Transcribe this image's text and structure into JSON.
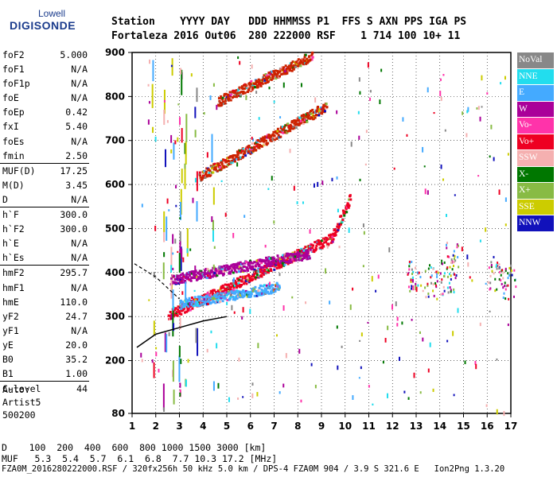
{
  "logo": {
    "line1": "Lowell",
    "line2": "DIGISONDE"
  },
  "header": {
    "row1": "Station    YYYY DAY   DDD HHMMSS P1  FFS S AXN PPS IGA PS",
    "row2": "Fortaleza 2016 Out06  280 222000 RSF    1 714 100 10+ 11"
  },
  "params": [
    {
      "k": "foF2",
      "v": "5.000"
    },
    {
      "k": "foF1",
      "v": "N/A"
    },
    {
      "k": "foF1p",
      "v": "N/A"
    },
    {
      "k": "foE",
      "v": "N/A"
    },
    {
      "k": "foEp",
      "v": "0.42"
    },
    {
      "k": "fxI",
      "v": "5.40"
    },
    {
      "k": "foEs",
      "v": "N/A"
    },
    {
      "k": "fmin",
      "v": "2.50"
    },
    {
      "k": "MUF(D)",
      "v": "17.25",
      "sep": true
    },
    {
      "k": "M(D)",
      "v": "3.45"
    },
    {
      "k": "D",
      "v": "N/A"
    },
    {
      "k": "h`F",
      "v": "300.0",
      "sep": true
    },
    {
      "k": "h`F2",
      "v": "300.0"
    },
    {
      "k": "h`E",
      "v": "N/A"
    },
    {
      "k": "h`Es",
      "v": "N/A"
    },
    {
      "k": "hmF2",
      "v": "295.7",
      "sep": true
    },
    {
      "k": "hmF1",
      "v": "N/A"
    },
    {
      "k": "hmE",
      "v": "110.0"
    },
    {
      "k": "yF2",
      "v": "24.7"
    },
    {
      "k": "yF1",
      "v": "N/A"
    },
    {
      "k": "yE",
      "v": "20.0"
    },
    {
      "k": "B0",
      "v": "35.2"
    },
    {
      "k": "B1",
      "v": "1.00"
    },
    {
      "k": "C-level",
      "v": "44",
      "sep": true
    }
  ],
  "auto": {
    "line1": "Auto:",
    "line2": "Artist5",
    "line3": "500200"
  },
  "legend": [
    {
      "label": "NoVal",
      "color": "#888888"
    },
    {
      "label": "NNE",
      "color": "#22ddee"
    },
    {
      "label": "E",
      "color": "#44aaff"
    },
    {
      "label": "W",
      "color": "#aa0099"
    },
    {
      "label": "Vo-",
      "color": "#ff33aa"
    },
    {
      "label": "Vo+",
      "color": "#ee0022"
    },
    {
      "label": "SSW",
      "color": "#f5b0b0"
    },
    {
      "label": "X-",
      "color": "#007700"
    },
    {
      "label": "X+",
      "color": "#88bb44"
    },
    {
      "label": "SSE",
      "color": "#cccc00"
    },
    {
      "label": "NNW",
      "color": "#1111bb"
    }
  ],
  "chart_data": {
    "type": "scatter",
    "title": "",
    "xlim": [
      1,
      17
    ],
    "ylim": [
      80,
      900
    ],
    "x_ticks": [
      "1",
      "2",
      "3",
      "4",
      "5",
      "6",
      "7",
      "8",
      "9",
      "10",
      "11",
      "12",
      "13",
      "14",
      "15",
      "16",
      "17"
    ],
    "y_ticks": [
      "80",
      "200",
      "300",
      "400",
      "500",
      "600",
      "700",
      "800",
      "900"
    ],
    "y_tick_values": [
      80,
      200,
      300,
      400,
      500,
      600,
      700,
      800,
      900
    ],
    "traces": [
      {
        "name": "O-trace F",
        "color": "#ee0022",
        "x_start": 2.5,
        "x_end": 10.2,
        "y_start": 305,
        "y_end": 500
      },
      {
        "name": "E-trace F",
        "color": "#44aaff",
        "x_start": 3.0,
        "x_end": 7.2,
        "y_start": 330,
        "y_end": 370
      },
      {
        "name": "W F band",
        "color": "#aa0099",
        "x_start": 2.6,
        "x_end": 8.5,
        "y_start": 385,
        "y_end": 445
      },
      {
        "name": "2nd hop",
        "color": "#cc2200",
        "x_start": 3.8,
        "x_end": 9.2,
        "y_start": 620,
        "y_end": 780
      },
      {
        "name": "3rd hop",
        "color": "#cc2200",
        "x_start": 4.6,
        "x_end": 8.6,
        "y_start": 790,
        "y_end": 895
      }
    ],
    "profile_line": {
      "x": [
        1.2,
        2.0,
        3.0,
        4.0,
        5.0
      ],
      "y": [
        230,
        260,
        275,
        290,
        300
      ]
    },
    "profile_dashed": {
      "x": [
        1.1,
        2.0,
        3.0
      ],
      "y": [
        420,
        390,
        340
      ]
    }
  },
  "bottom": {
    "d_label": "D    100  200  400  600  800 1000 1500 3000 [km]",
    "muf_label": "MUF   5.3  5.4  5.7  6.1  6.8  7.7 10.3 17.2 [MHz]"
  },
  "footer": "FZA0M_2016280222000.RSF / 320fx256h 50 kHz 5.0 km / DPS-4 FZA0M 904 / 3.9 S 321.6 E   Ion2Png 1.3.20"
}
